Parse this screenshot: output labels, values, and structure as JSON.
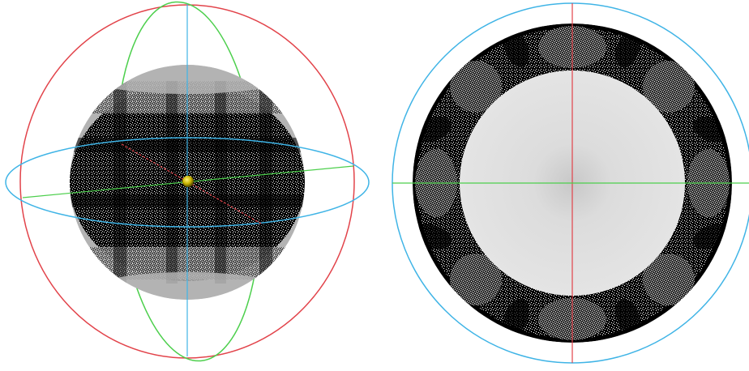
{
  "colors": {
    "background": "#ffffff",
    "x_axis": "#e2434a",
    "y_axis": "#4ccf4c",
    "z_axis": "#3fb4e6",
    "sphere_shell": "#b3b3b3",
    "inner_disc": "#dcdcdc",
    "point_cloud": "#000000",
    "marker": "#c8b400"
  },
  "views": [
    {
      "id": "perspective",
      "description_icon": "sphere-point-cloud-icon"
    },
    {
      "id": "top-down",
      "description_icon": "disc-point-cloud-icon"
    }
  ]
}
